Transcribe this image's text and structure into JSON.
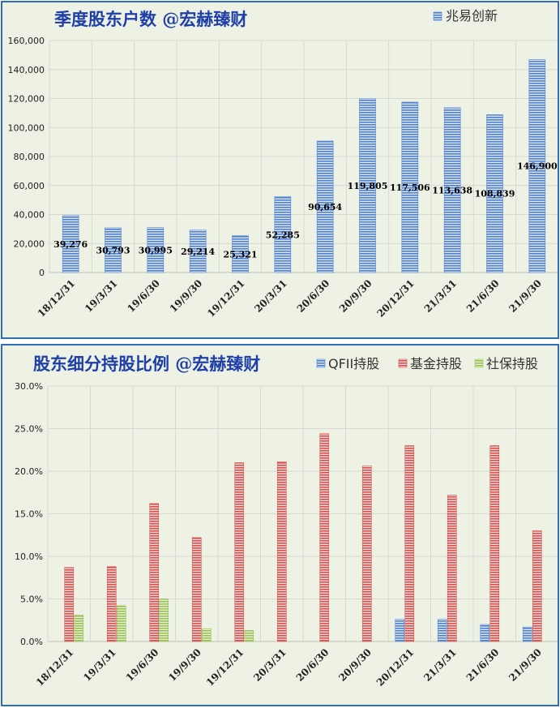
{
  "chart_data": [
    {
      "type": "bar",
      "title": "季度股东户数 @宏赫臻财",
      "categories": [
        "18/12/31",
        "19/3/31",
        "19/6/30",
        "19/9/30",
        "19/12/31",
        "20/3/31",
        "20/6/30",
        "20/9/30",
        "20/12/31",
        "21/3/31",
        "21/6/30",
        "21/9/30"
      ],
      "series": [
        {
          "name": "兆易创新",
          "color": "#4f81d0",
          "values": [
            39276,
            30793,
            30995,
            29214,
            25321,
            52285,
            90654,
            119805,
            117506,
            113638,
            108839,
            146900
          ],
          "labels": [
            "39,276",
            "30,793",
            "30,995",
            "29,214",
            "25,321",
            "52,285",
            "90,654",
            "119,805",
            "117,506",
            "113,638",
            "108,839",
            "146,900"
          ]
        }
      ],
      "ylim": [
        0,
        160000
      ],
      "yticks": [
        0,
        20000,
        40000,
        60000,
        80000,
        100000,
        120000,
        140000,
        160000
      ],
      "ytick_labels": [
        "0",
        "20,000",
        "40,000",
        "60,000",
        "80,000",
        "100,000",
        "120,000",
        "140,000",
        "160,000"
      ],
      "grid": true,
      "legend": "top-right"
    },
    {
      "type": "bar",
      "title": "股东细分持股比例 @宏赫臻财",
      "categories": [
        "18/12/31",
        "19/3/31",
        "19/6/30",
        "19/9/30",
        "19/12/31",
        "20/3/31",
        "20/6/30",
        "20/9/30",
        "20/12/31",
        "21/3/31",
        "21/6/30",
        "21/9/30"
      ],
      "series": [
        {
          "name": "QFII持股",
          "color": "#4f81d0",
          "values": [
            0,
            0,
            0,
            0,
            0,
            0,
            0,
            0,
            2.6,
            2.6,
            2.0,
            1.7
          ]
        },
        {
          "name": "基金持股",
          "color": "#d9504c",
          "values": [
            8.7,
            8.8,
            16.2,
            12.2,
            21.0,
            21.1,
            24.4,
            20.6,
            23.0,
            17.2,
            23.0,
            13.0
          ]
        },
        {
          "name": "社保持股",
          "color": "#9ac155",
          "values": [
            3.1,
            4.2,
            5.0,
            1.5,
            1.3,
            0,
            0,
            0,
            0,
            0,
            0,
            0
          ]
        }
      ],
      "ylim": [
        0,
        30
      ],
      "yticks": [
        0,
        5,
        10,
        15,
        20,
        25,
        30
      ],
      "ytick_labels": [
        "0.0%",
        "5.0%",
        "10.0%",
        "15.0%",
        "20.0%",
        "25.0%",
        "30.0%"
      ],
      "grid": true,
      "legend": "top-right"
    }
  ]
}
